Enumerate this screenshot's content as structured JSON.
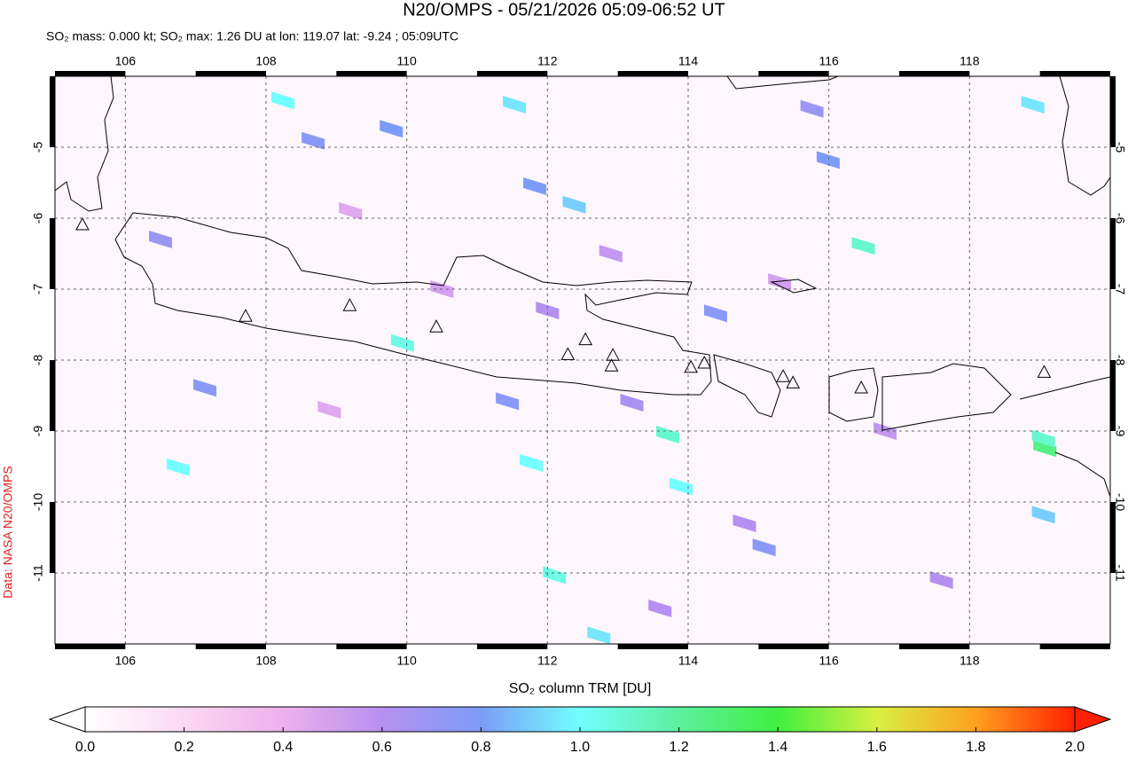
{
  "chart_data": {
    "type": "map",
    "title": "N20/OMPS - 05/21/2026 05:09-06:52 UT",
    "subtitle": "SO₂ mass: 0.000 kt; SO₂ max: 1.26 DU at lon: 119.07 lat: -9.24 ; 05:09UTC",
    "source": "Data: NASA N20/OMPS",
    "xlim": [
      105,
      120
    ],
    "ylim": [
      -12,
      -4
    ],
    "xticks": [
      106,
      108,
      110,
      112,
      114,
      116,
      118
    ],
    "yticks": [
      -5,
      -6,
      -7,
      -8,
      -9,
      -10,
      -11
    ],
    "grid": true,
    "pixels": {
      "lon": [
        108.24,
        108.67,
        109.78,
        111.53,
        111.82,
        112.38,
        116.49,
        109.94,
        113.71,
        111.77,
        113.9,
        106.75,
        119.07,
        119.05,
        112.1,
        112.73,
        114.39,
        119.05,
        118.9,
        107.13,
        111.43,
        115.08,
        115.76,
        115.99,
        112.0,
        113.2,
        110.5,
        114.8,
        116.8,
        117.6,
        106.5,
        109.2,
        112.9,
        115.3,
        108.9,
        113.6
      ],
      "lat": [
        -4.34,
        -4.91,
        -4.74,
        -4.4,
        -5.55,
        -5.81,
        -6.39,
        -7.76,
        -9.05,
        -9.45,
        -9.78,
        -9.51,
        -9.24,
        -9.11,
        -11.03,
        -11.88,
        -7.34,
        -10.18,
        -4.4,
        -8.39,
        -8.58,
        -10.64,
        -4.46,
        -5.18,
        -7.3,
        -8.6,
        -7.0,
        -10.3,
        -9.0,
        -11.1,
        -6.3,
        -5.9,
        -6.5,
        -6.9,
        -8.7,
        -11.5
      ],
      "values": [
        1.0,
        0.75,
        0.8,
        0.95,
        0.8,
        0.9,
        1.1,
        1.05,
        1.1,
        1.0,
        1.0,
        1.0,
        1.26,
        1.1,
        1.05,
        0.95,
        0.75,
        0.9,
        0.95,
        0.75,
        0.75,
        0.75,
        0.7,
        0.8,
        0.6,
        0.65,
        0.5,
        0.6,
        0.55,
        0.6,
        0.7,
        0.45,
        0.55,
        0.5,
        0.45,
        0.6
      ]
    },
    "volcanoes": {
      "lon": [
        105.39,
        107.71,
        109.19,
        110.42,
        112.29,
        112.54,
        112.93,
        112.91,
        114.04,
        114.23,
        115.35,
        115.49,
        116.46,
        119.06
      ],
      "lat": [
        -6.1,
        -7.39,
        -7.24,
        -7.54,
        -7.93,
        -7.72,
        -7.94,
        -8.09,
        -8.11,
        -8.05,
        -8.24,
        -8.33,
        -8.4,
        -8.18
      ]
    },
    "colorbar": {
      "label": "SO₂ column TRM [DU]",
      "lim": [
        0,
        2
      ],
      "ticks": [
        {
          "value": 0,
          "label": "0.0"
        },
        {
          "value": 0.2,
          "label": "0.2"
        },
        {
          "value": 0.4,
          "label": "0.4"
        },
        {
          "value": 0.6,
          "label": "0.6"
        },
        {
          "value": 0.8,
          "label": "0.8"
        },
        {
          "value": 1,
          "label": "1.0"
        },
        {
          "value": 1.2,
          "label": "1.2"
        },
        {
          "value": 1.4,
          "label": "1.4"
        },
        {
          "value": 1.6,
          "label": "1.6"
        },
        {
          "value": 1.8,
          "label": "1.8"
        },
        {
          "value": 2,
          "label": "2.0"
        }
      ]
    }
  }
}
